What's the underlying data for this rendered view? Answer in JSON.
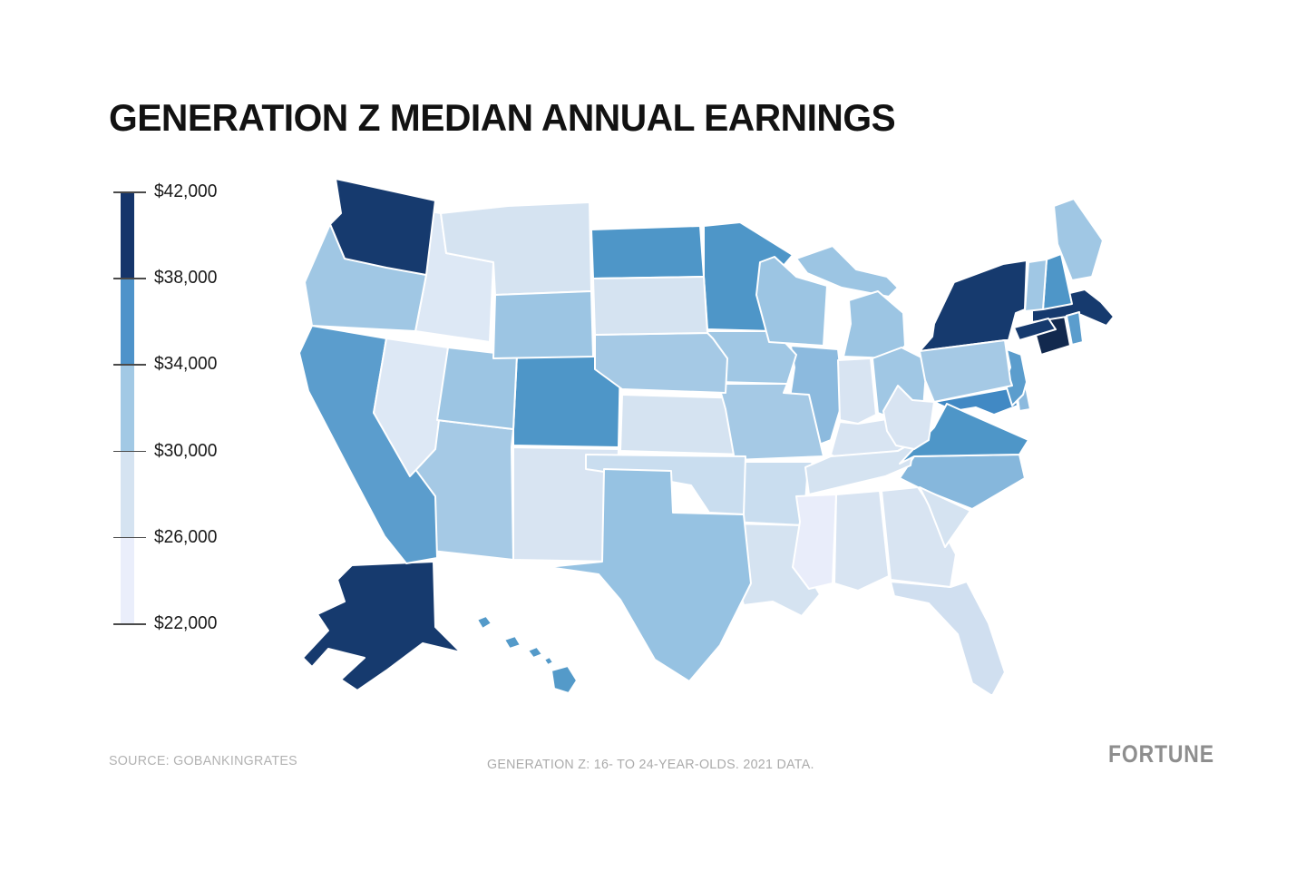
{
  "title": "GENERATION Z MEDIAN ANNUAL EARNINGS",
  "source": "SOURCE: GOBANKINGRATES",
  "note": "GENERATION Z: 16- TO 24-YEAR-OLDS. 2021 DATA.",
  "brand": "FORTUNE",
  "legend": {
    "ticks": [
      "$42,000",
      "$38,000",
      "$34,000",
      "$30,000",
      "$26,000",
      "$22,000"
    ],
    "band_colors_top_to_bottom": [
      "#15356b",
      "#4e93ca",
      "#a2c9e5",
      "#d5e3f1",
      "#eaeefb"
    ]
  },
  "chart_data": {
    "type": "choropleth-map",
    "title": "Generation Z Median Annual Earnings",
    "region": "United States",
    "value_unit": "USD per year",
    "value_range": [
      22000,
      42000
    ],
    "color_scale": {
      "low_color": "#eaeefb",
      "high_color": "#12294e",
      "palette": "blues"
    },
    "legend_position": "left",
    "states": [
      {
        "code": "AL",
        "name": "Alabama",
        "value": 26000,
        "color": "#d8e4f2"
      },
      {
        "code": "AK",
        "name": "Alaska",
        "value": 40500,
        "color": "#163a6e"
      },
      {
        "code": "AZ",
        "name": "Arizona",
        "value": 31500,
        "color": "#a5c9e5"
      },
      {
        "code": "AR",
        "name": "Arkansas",
        "value": 28500,
        "color": "#c9ddef"
      },
      {
        "code": "CA",
        "name": "California",
        "value": 35500,
        "color": "#5b9dcd"
      },
      {
        "code": "CO",
        "name": "Colorado",
        "value": 36500,
        "color": "#4e96c8"
      },
      {
        "code": "CT",
        "name": "Connecticut",
        "value": 42000,
        "color": "#12294e"
      },
      {
        "code": "DE",
        "name": "Delaware",
        "value": 33000,
        "color": "#8cbade"
      },
      {
        "code": "FL",
        "name": "Florida",
        "value": 27500,
        "color": "#d0dff0"
      },
      {
        "code": "GA",
        "name": "Georgia",
        "value": 26500,
        "color": "#d8e4f2"
      },
      {
        "code": "HI",
        "name": "Hawaii",
        "value": 36000,
        "color": "#549ac9"
      },
      {
        "code": "ID",
        "name": "Idaho",
        "value": 26500,
        "color": "#dde8f5"
      },
      {
        "code": "IL",
        "name": "Illinois",
        "value": 33000,
        "color": "#8cbade"
      },
      {
        "code": "IN",
        "name": "Indiana",
        "value": 26500,
        "color": "#d8e4f2"
      },
      {
        "code": "IA",
        "name": "Iowa",
        "value": 31500,
        "color": "#a0c7e4"
      },
      {
        "code": "KS",
        "name": "Kansas",
        "value": 27000,
        "color": "#d5e3f1"
      },
      {
        "code": "KY",
        "name": "Kentucky",
        "value": 26500,
        "color": "#d8e4f2"
      },
      {
        "code": "LA",
        "name": "Louisiana",
        "value": 27000,
        "color": "#d5e3f1"
      },
      {
        "code": "ME",
        "name": "Maine",
        "value": 31500,
        "color": "#a0c7e4"
      },
      {
        "code": "MD",
        "name": "Maryland",
        "value": 37500,
        "color": "#4189c4"
      },
      {
        "code": "MA",
        "name": "Massachusetts",
        "value": 40500,
        "color": "#163a6e"
      },
      {
        "code": "MI",
        "name": "Michigan",
        "value": 32000,
        "color": "#9cc5e3"
      },
      {
        "code": "MN",
        "name": "Minnesota",
        "value": 37000,
        "color": "#4e96c8"
      },
      {
        "code": "MS",
        "name": "Mississippi",
        "value": 23000,
        "color": "#e9edfa"
      },
      {
        "code": "MO",
        "name": "Missouri",
        "value": 31000,
        "color": "#a5c9e5"
      },
      {
        "code": "MT",
        "name": "Montana",
        "value": 27000,
        "color": "#d5e3f1"
      },
      {
        "code": "NE",
        "name": "Nebraska",
        "value": 31000,
        "color": "#a5c9e5"
      },
      {
        "code": "NV",
        "name": "Nevada",
        "value": 26500,
        "color": "#dde8f5"
      },
      {
        "code": "NH",
        "name": "New Hampshire",
        "value": 36500,
        "color": "#4e96c8"
      },
      {
        "code": "NJ",
        "name": "New Jersey",
        "value": 36000,
        "color": "#5b9dcd"
      },
      {
        "code": "NM",
        "name": "New Mexico",
        "value": 26500,
        "color": "#d8e4f2"
      },
      {
        "code": "NY",
        "name": "New York",
        "value": 40000,
        "color": "#163a6e"
      },
      {
        "code": "NC",
        "name": "North Carolina",
        "value": 33500,
        "color": "#86b7dc"
      },
      {
        "code": "ND",
        "name": "North Dakota",
        "value": 37000,
        "color": "#4e96c8"
      },
      {
        "code": "OH",
        "name": "Ohio",
        "value": 31500,
        "color": "#a0c7e4"
      },
      {
        "code": "OK",
        "name": "Oklahoma",
        "value": 28500,
        "color": "#c9ddef"
      },
      {
        "code": "OR",
        "name": "Oregon",
        "value": 32000,
        "color": "#a0c7e4"
      },
      {
        "code": "PA",
        "name": "Pennsylvania",
        "value": 31500,
        "color": "#a5c9e5"
      },
      {
        "code": "RI",
        "name": "Rhode Island",
        "value": 35500,
        "color": "#5b9dcd"
      },
      {
        "code": "SC",
        "name": "South Carolina",
        "value": 27000,
        "color": "#d5e3f1"
      },
      {
        "code": "SD",
        "name": "South Dakota",
        "value": 27000,
        "color": "#d5e3f1"
      },
      {
        "code": "TN",
        "name": "Tennessee",
        "value": 27000,
        "color": "#d5e3f1"
      },
      {
        "code": "TX",
        "name": "Texas",
        "value": 32000,
        "color": "#96c2e2"
      },
      {
        "code": "UT",
        "name": "Utah",
        "value": 32000,
        "color": "#9cc5e3"
      },
      {
        "code": "VT",
        "name": "Vermont",
        "value": 31500,
        "color": "#a0c7e4"
      },
      {
        "code": "VA",
        "name": "Virginia",
        "value": 36500,
        "color": "#4e96c8"
      },
      {
        "code": "WA",
        "name": "Washington",
        "value": 40500,
        "color": "#163a6e"
      },
      {
        "code": "WV",
        "name": "West Virginia",
        "value": 26500,
        "color": "#d8e4f2"
      },
      {
        "code": "WI",
        "name": "Wisconsin",
        "value": 32000,
        "color": "#9cc5e3"
      },
      {
        "code": "WY",
        "name": "Wyoming",
        "value": 31500,
        "color": "#9cc5e3"
      }
    ]
  }
}
